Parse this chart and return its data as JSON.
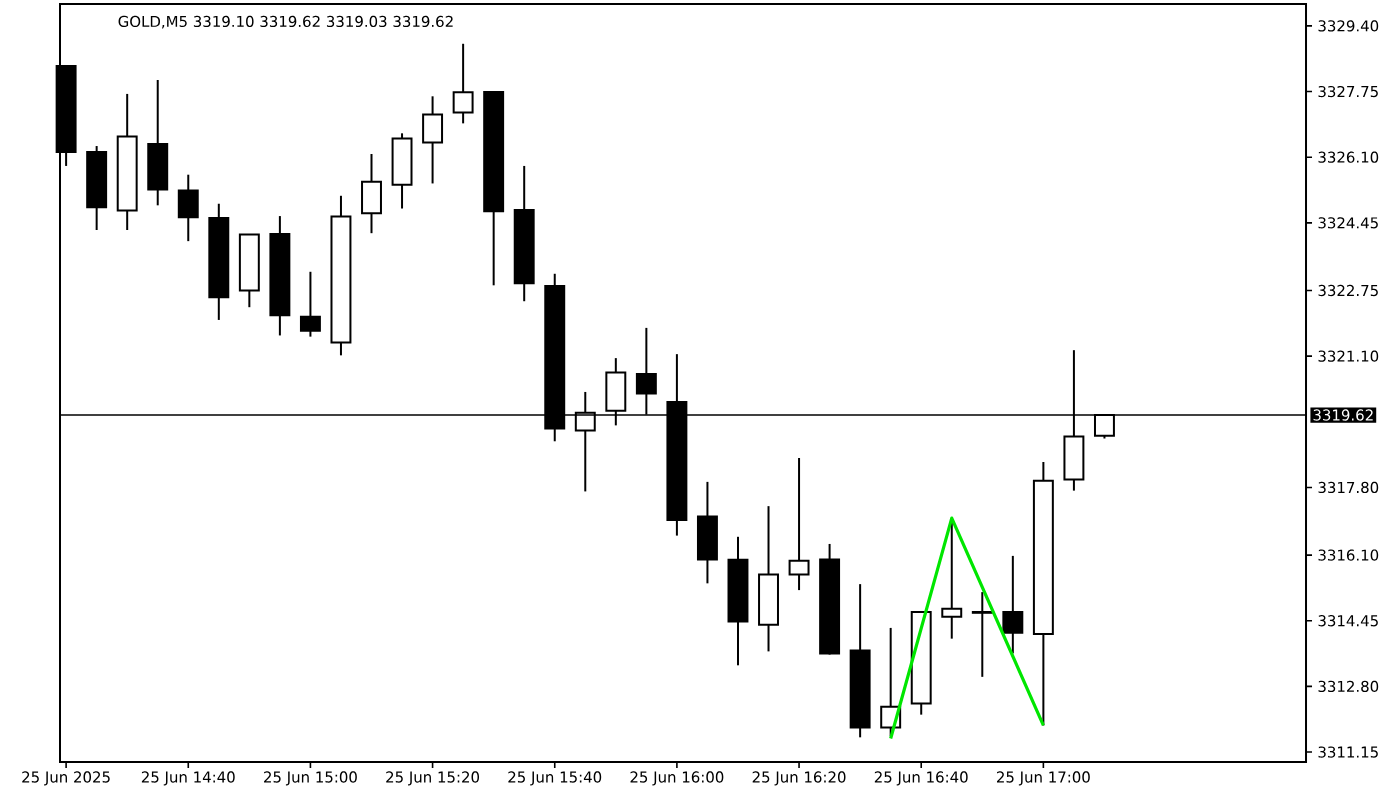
{
  "chart_data": {
    "type": "candlestick",
    "title": "GOLD,M5  3319.10 3319.62 3319.03 3319.62",
    "x": [
      "2025-06-25T14:20",
      "2025-06-25T14:25",
      "2025-06-25T14:30",
      "2025-06-25T14:35",
      "2025-06-25T14:40",
      "2025-06-25T14:45",
      "2025-06-25T14:50",
      "2025-06-25T14:55",
      "2025-06-25T15:00",
      "2025-06-25T15:05",
      "2025-06-25T15:10",
      "2025-06-25T15:15",
      "2025-06-25T15:20",
      "2025-06-25T15:25",
      "2025-06-25T15:30",
      "2025-06-25T15:35",
      "2025-06-25T15:40",
      "2025-06-25T15:45",
      "2025-06-25T15:50",
      "2025-06-25T15:55",
      "2025-06-25T16:00",
      "2025-06-25T16:05",
      "2025-06-25T16:10",
      "2025-06-25T16:15",
      "2025-06-25T16:20",
      "2025-06-25T16:25",
      "2025-06-25T16:30",
      "2025-06-25T16:35",
      "2025-06-25T16:40",
      "2025-06-25T16:45",
      "2025-06-25T16:50",
      "2025-06-25T16:55",
      "2025-06-25T17:00",
      "2025-06-25T17:05",
      "2025-06-25T17:10"
    ],
    "ohlc": [
      [
        3328.39,
        3328.39,
        3325.88,
        3326.23
      ],
      [
        3326.23,
        3326.38,
        3324.27,
        3324.84
      ],
      [
        3324.76,
        3327.69,
        3324.27,
        3326.62
      ],
      [
        3326.43,
        3328.04,
        3324.89,
        3325.29
      ],
      [
        3325.26,
        3325.66,
        3323.99,
        3324.59
      ],
      [
        3324.57,
        3324.93,
        3322.01,
        3322.58
      ],
      [
        3322.75,
        3324.16,
        3322.33,
        3324.16
      ],
      [
        3324.17,
        3324.62,
        3321.62,
        3322.13
      ],
      [
        3322.09,
        3323.22,
        3321.59,
        3321.74
      ],
      [
        3321.44,
        3325.13,
        3321.12,
        3324.61
      ],
      [
        3324.69,
        3326.18,
        3324.19,
        3325.48
      ],
      [
        3325.41,
        3326.7,
        3324.81,
        3326.57
      ],
      [
        3326.47,
        3327.63,
        3325.44,
        3327.17
      ],
      [
        3327.22,
        3328.95,
        3326.95,
        3327.73
      ],
      [
        3327.74,
        3327.74,
        3322.88,
        3324.74
      ],
      [
        3324.77,
        3325.88,
        3322.48,
        3322.93
      ],
      [
        3322.86,
        3323.17,
        3318.96,
        3319.28
      ],
      [
        3319.23,
        3320.2,
        3317.7,
        3319.68
      ],
      [
        3319.73,
        3321.05,
        3319.36,
        3320.69
      ],
      [
        3320.65,
        3321.81,
        3319.63,
        3320.16
      ],
      [
        3319.95,
        3321.15,
        3316.59,
        3316.98
      ],
      [
        3317.07,
        3317.94,
        3315.39,
        3315.99
      ],
      [
        3315.98,
        3316.56,
        3313.33,
        3314.43
      ],
      [
        3314.35,
        3317.33,
        3313.68,
        3315.61
      ],
      [
        3315.61,
        3318.54,
        3315.22,
        3315.96
      ],
      [
        3315.99,
        3316.38,
        3313.6,
        3313.63
      ],
      [
        3313.7,
        3315.37,
        3311.52,
        3311.77
      ],
      [
        3311.77,
        3314.27,
        3311.55,
        3312.29
      ],
      [
        3312.37,
        3314.67,
        3312.09,
        3314.67
      ],
      [
        3314.55,
        3317.03,
        3314.0,
        3314.75
      ],
      [
        3314.65,
        3315.17,
        3313.04,
        3314.67
      ],
      [
        3314.67,
        3316.08,
        3313.63,
        3314.15
      ],
      [
        3314.12,
        3318.44,
        3311.82,
        3317.97
      ],
      [
        3318.0,
        3321.25,
        3317.72,
        3319.08
      ],
      [
        3319.1,
        3319.62,
        3319.03,
        3319.62
      ]
    ],
    "series": [
      {
        "type": "line",
        "color": "#00e600",
        "x": [
          "2025-06-25T16:35",
          "2025-06-25T16:45",
          "2025-06-25T17:00"
        ],
        "values": [
          3311.49,
          3317.03,
          3311.82
        ]
      }
    ],
    "xlim": [
      "2025-06-25T14:19",
      "2025-06-25T17:43"
    ],
    "ylim": [
      3310.9,
      3329.95
    ],
    "xticks": [
      {
        "value": "2025-06-25T14:20",
        "label": "25 Jun 2025"
      },
      {
        "value": "2025-06-25T14:40",
        "label": "25 Jun 14:40"
      },
      {
        "value": "2025-06-25T15:00",
        "label": "25 Jun 15:00"
      },
      {
        "value": "2025-06-25T15:20",
        "label": "25 Jun 15:20"
      },
      {
        "value": "2025-06-25T15:40",
        "label": "25 Jun 15:40"
      },
      {
        "value": "2025-06-25T16:00",
        "label": "25 Jun 16:00"
      },
      {
        "value": "2025-06-25T16:20",
        "label": "25 Jun 16:20"
      },
      {
        "value": "2025-06-25T16:40",
        "label": "25 Jun 16:40"
      },
      {
        "value": "2025-06-25T17:00",
        "label": "25 Jun 17:00"
      }
    ],
    "yticks": [
      {
        "value": 3311.15,
        "label": "3311.15"
      },
      {
        "value": 3312.8,
        "label": "3312.80"
      },
      {
        "value": 3314.45,
        "label": "3314.45"
      },
      {
        "value": 3316.1,
        "label": "3316.10"
      },
      {
        "value": 3317.8,
        "label": "3317.80"
      },
      {
        "value": 3321.1,
        "label": "3321.10"
      },
      {
        "value": 3322.75,
        "label": "3322.75"
      },
      {
        "value": 3324.45,
        "label": "3324.45"
      },
      {
        "value": 3326.1,
        "label": "3326.10"
      },
      {
        "value": 3327.75,
        "label": "3327.75"
      },
      {
        "value": 3329.4,
        "label": "3329.40"
      }
    ],
    "ref_lines": [
      {
        "axis": "y",
        "value": 3319.62,
        "label": "3319.62",
        "color": "#000000"
      }
    ],
    "grid": false
  }
}
